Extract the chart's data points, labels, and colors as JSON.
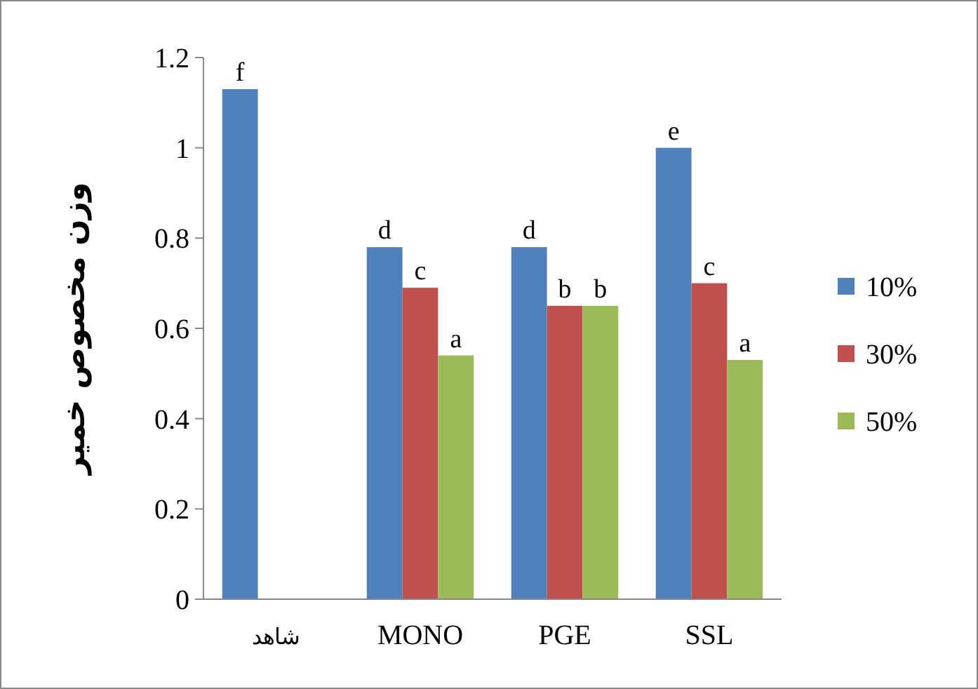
{
  "chart_data": {
    "type": "bar",
    "ylabel": "وزن مخصوص خمیر",
    "categories": [
      "شاهد",
      "MONO",
      "PGE",
      "SSL"
    ],
    "series": [
      {
        "name": "10%",
        "color": "#4f81bd",
        "values": [
          1.13,
          0.78,
          0.78,
          1.0
        ],
        "value_labels": [
          "f",
          "d",
          "d",
          "e"
        ]
      },
      {
        "name": "30%",
        "color": "#c0504d",
        "values": [
          null,
          0.69,
          0.65,
          0.7
        ],
        "value_labels": [
          null,
          "c",
          "b",
          "c"
        ]
      },
      {
        "name": "50%",
        "color": "#9bbb59",
        "values": [
          null,
          0.54,
          0.65,
          0.53
        ],
        "value_labels": [
          null,
          "a",
          "b",
          "a"
        ]
      }
    ],
    "ylim": [
      0,
      1.2
    ],
    "yticks": [
      0,
      0.2,
      0.4,
      0.6,
      0.8,
      1,
      1.2
    ],
    "legend": "right",
    "grid": false
  }
}
